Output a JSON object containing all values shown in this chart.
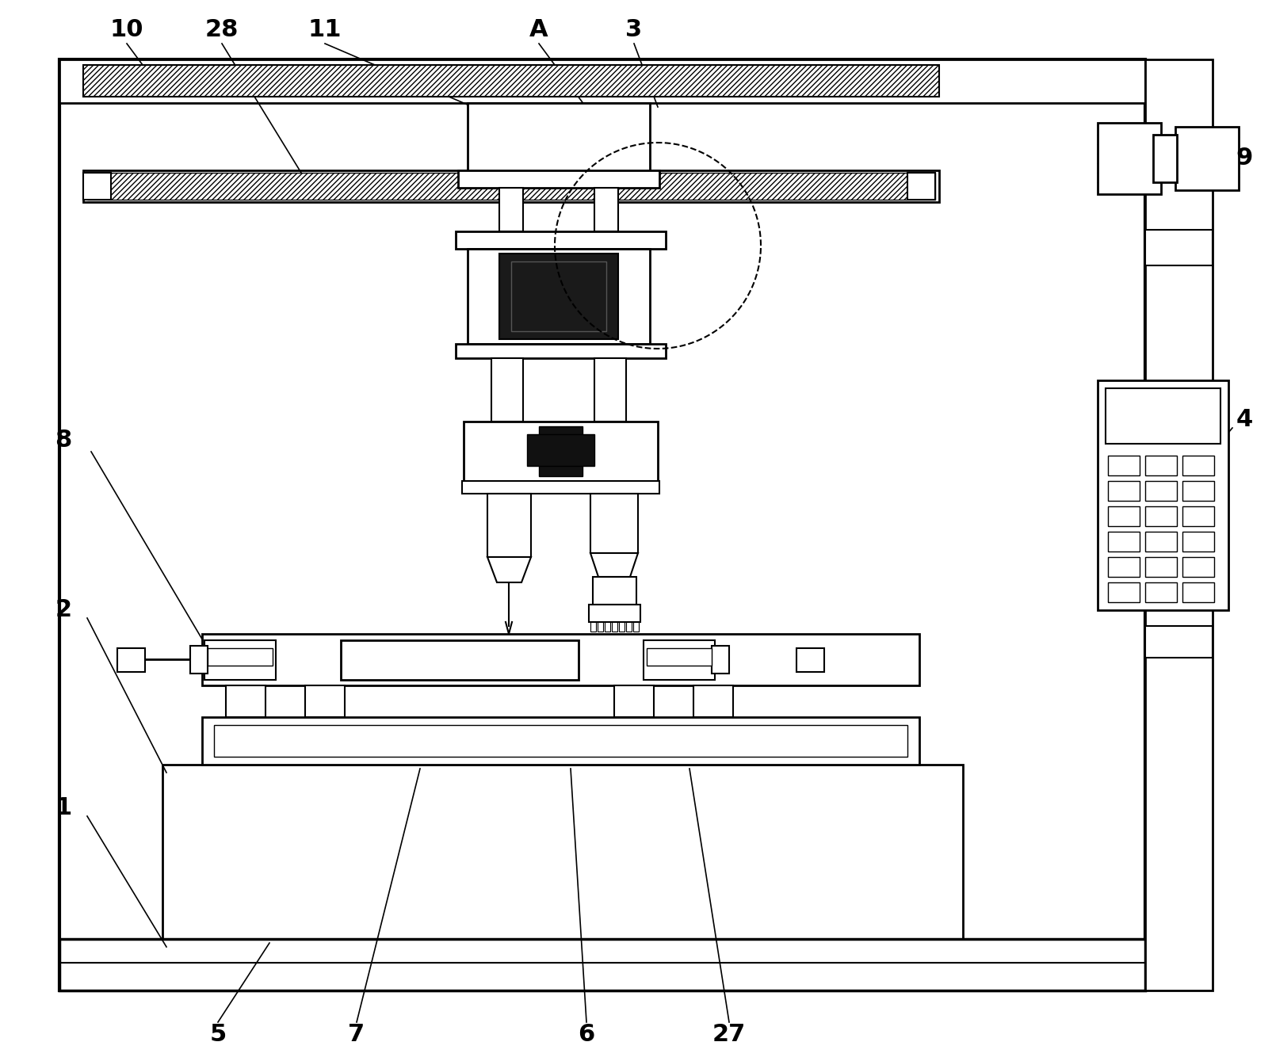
{
  "bg_color": "#ffffff",
  "line_color": "#000000",
  "fig_width": 16.05,
  "fig_height": 13.39
}
